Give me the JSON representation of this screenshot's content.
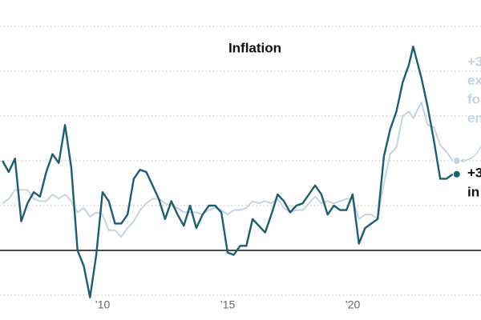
{
  "chart_data": {
    "type": "line",
    "title": "Inflation",
    "x": [
      2006.0,
      2006.25,
      2006.5,
      2006.75,
      2007.0,
      2007.25,
      2007.5,
      2007.75,
      2008.0,
      2008.25,
      2008.5,
      2008.75,
      2009.0,
      2009.25,
      2009.5,
      2009.75,
      2010.0,
      2010.25,
      2010.5,
      2010.75,
      2011.0,
      2011.25,
      2011.5,
      2011.75,
      2012.0,
      2012.25,
      2012.5,
      2012.75,
      2013.0,
      2013.25,
      2013.5,
      2013.75,
      2014.0,
      2014.25,
      2014.5,
      2014.75,
      2015.0,
      2015.25,
      2015.5,
      2015.75,
      2016.0,
      2016.25,
      2016.5,
      2016.75,
      2017.0,
      2017.25,
      2017.5,
      2017.75,
      2018.0,
      2018.25,
      2018.5,
      2018.75,
      2019.0,
      2019.25,
      2019.5,
      2019.75,
      2020.0,
      2020.25,
      2020.5,
      2020.75,
      2021.0,
      2021.25,
      2021.5,
      2021.75,
      2022.0,
      2022.25,
      2022.42,
      2022.75,
      2023.0,
      2023.25,
      2023.5,
      2023.75,
      2024.0
    ],
    "series": [
      {
        "name": "excluding food and energy",
        "color": "#c6d4e1",
        "label_lines": [
          "+3",
          "ex",
          "fo",
          "en"
        ],
        "values": [
          2.1,
          2.3,
          2.7,
          2.7,
          2.7,
          2.3,
          2.2,
          2.2,
          2.5,
          2.3,
          2.5,
          2.2,
          1.7,
          1.9,
          1.5,
          1.7,
          1.6,
          0.9,
          0.9,
          0.6,
          1.0,
          1.3,
          1.8,
          2.1,
          2.3,
          2.3,
          2.1,
          2.0,
          1.9,
          1.7,
          1.7,
          1.7,
          1.6,
          1.8,
          1.9,
          1.8,
          1.6,
          1.8,
          1.8,
          1.9,
          2.2,
          2.1,
          2.2,
          2.1,
          2.3,
          1.9,
          1.7,
          1.8,
          1.8,
          2.1,
          2.4,
          2.1,
          2.2,
          2.1,
          2.2,
          2.3,
          2.3,
          1.4,
          1.6,
          1.6,
          1.4,
          3.0,
          4.3,
          4.6,
          6.0,
          6.2,
          5.9,
          6.6,
          5.6,
          5.5,
          4.7,
          4.4,
          4.0
        ]
      },
      {
        "name": "inflation",
        "color": "#1b5e6e",
        "label_lines": [
          "+3",
          "in"
        ],
        "values": [
          4.0,
          3.5,
          4.1,
          1.3,
          2.1,
          2.6,
          2.4,
          3.5,
          4.3,
          3.9,
          5.6,
          3.7,
          0.0,
          -0.7,
          -2.1,
          -0.2,
          2.6,
          2.2,
          1.2,
          1.2,
          1.6,
          3.2,
          3.6,
          3.5,
          2.9,
          2.3,
          1.4,
          2.2,
          1.6,
          1.1,
          2.0,
          1.0,
          1.6,
          2.0,
          2.0,
          1.7,
          -0.1,
          -0.2,
          0.2,
          0.2,
          1.4,
          1.1,
          0.8,
          1.6,
          2.5,
          2.2,
          1.7,
          2.0,
          2.1,
          2.5,
          2.9,
          2.5,
          1.6,
          2.0,
          1.8,
          1.8,
          2.5,
          0.3,
          1.0,
          1.2,
          1.4,
          4.2,
          5.4,
          6.2,
          7.5,
          8.3,
          9.1,
          7.7,
          6.4,
          4.9,
          3.2,
          3.2,
          3.4
        ]
      }
    ],
    "xlim": [
      2005.9,
      2025.13
    ],
    "xticks": [
      {
        "value": 2010,
        "label": "’10"
      },
      {
        "value": 2015,
        "label": "’15"
      },
      {
        "value": 2020,
        "label": "’20"
      }
    ],
    "ylim": [
      -3.11,
      11.18
    ],
    "yticks": [
      -2,
      0,
      2,
      4,
      6,
      8,
      10
    ],
    "grid": true
  }
}
